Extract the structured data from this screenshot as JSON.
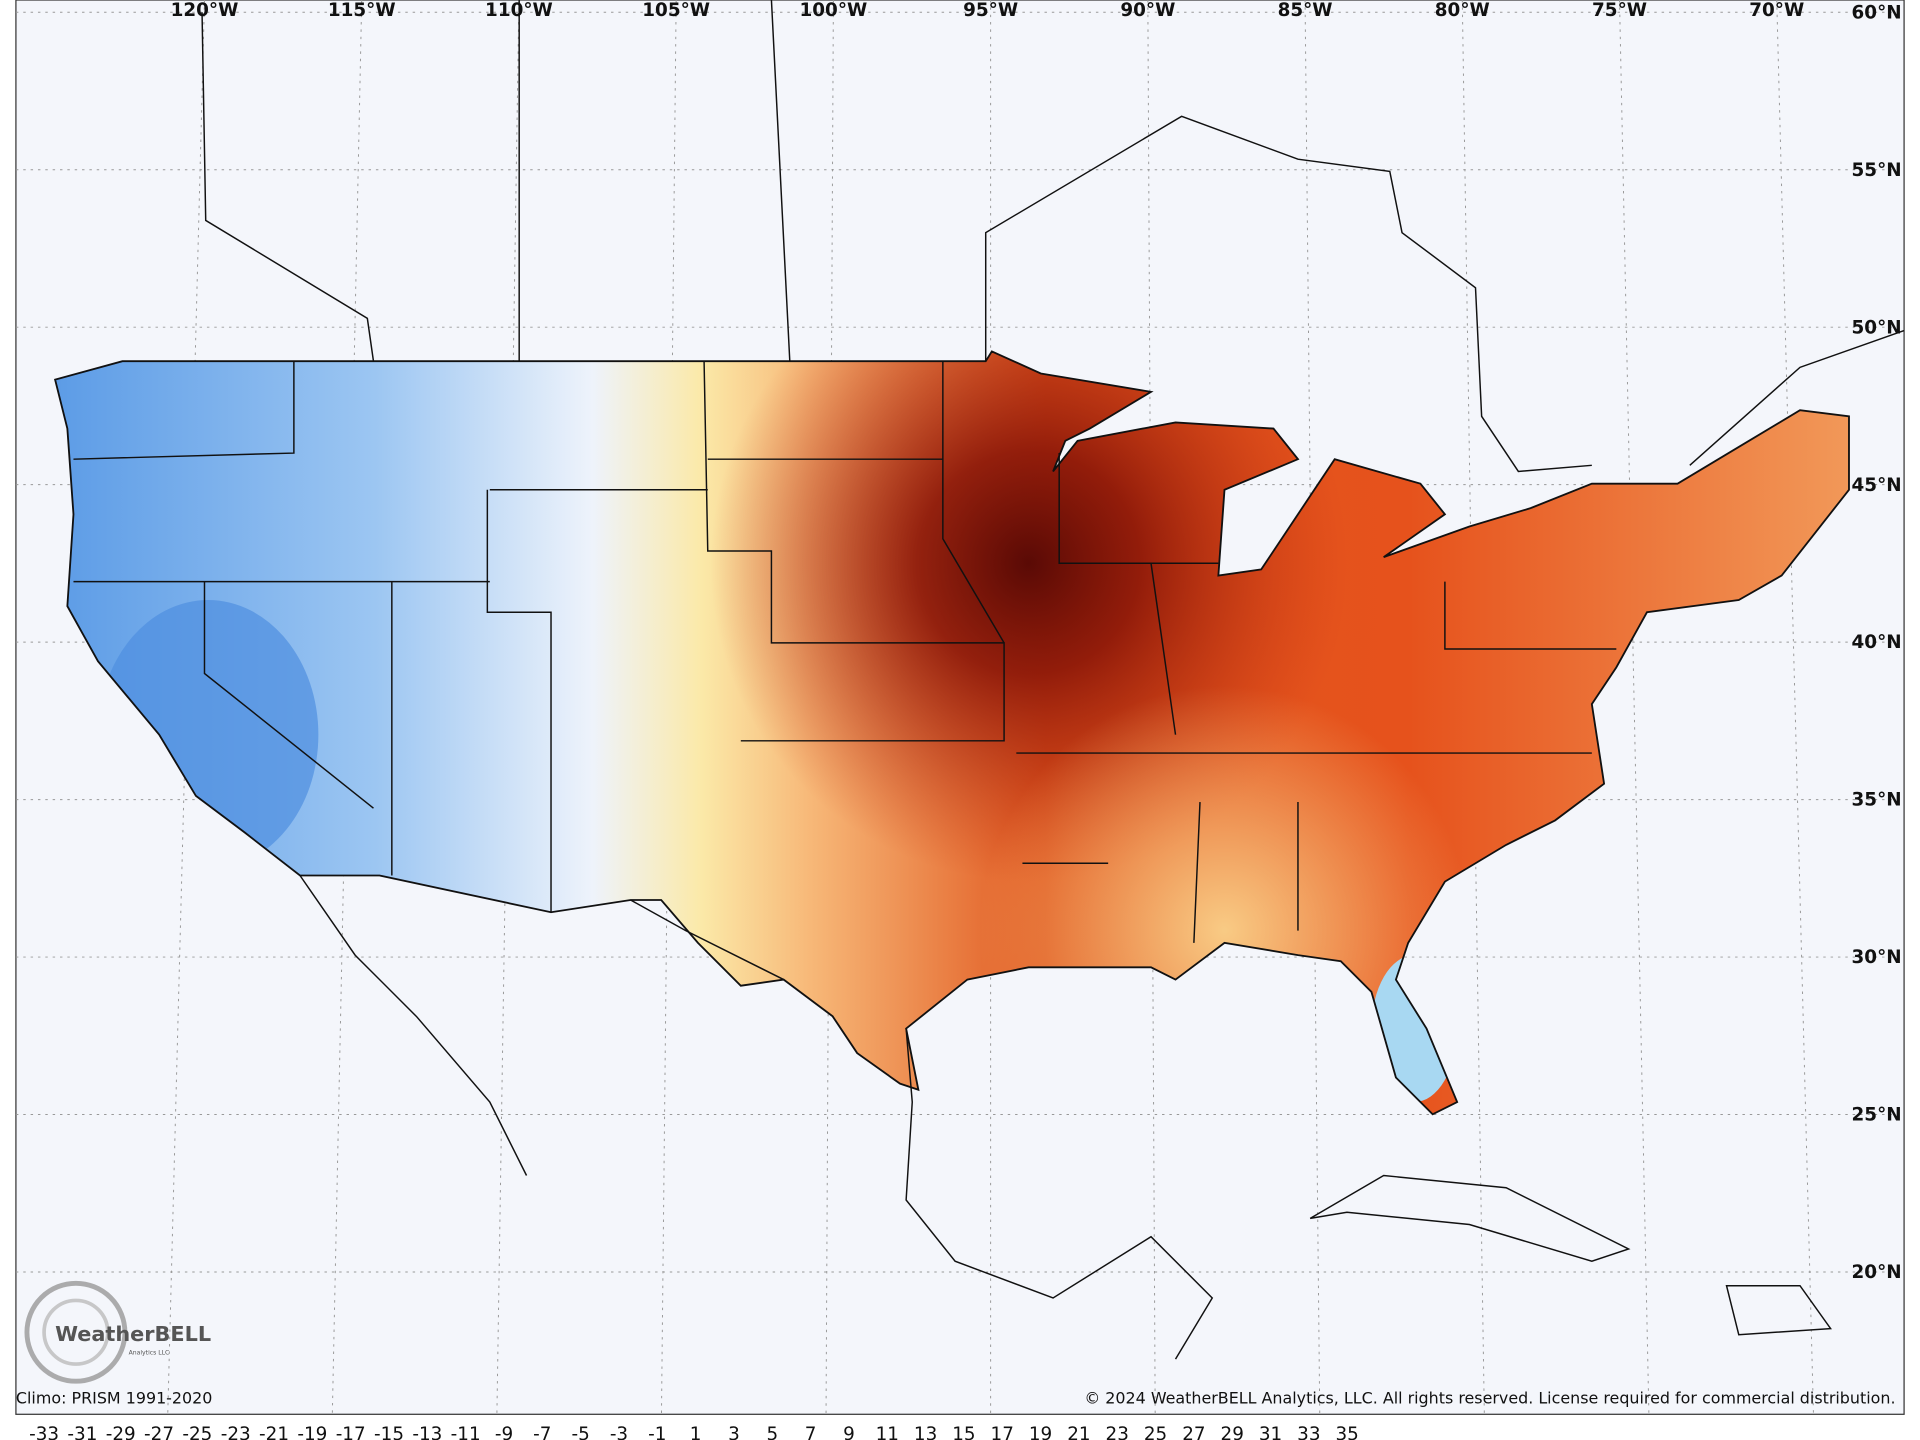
{
  "map": {
    "longitude_labels": [
      "120°W",
      "115°W",
      "110°W",
      "105°W",
      "100°W",
      "95°W",
      "90°W",
      "85°W",
      "80°W",
      "75°W",
      "70°W"
    ],
    "latitude_labels": [
      "60°N",
      "55°N",
      "50°N",
      "45°N",
      "40°N",
      "35°N",
      "30°N",
      "25°N",
      "20°N"
    ],
    "logo": {
      "name": "WeatherBELL",
      "tagline": "Analytics LLC"
    },
    "climo_note": "Climo: PRISM 1991-2020",
    "copyright": "© 2024 WeatherBELL Analytics, LLC. All rights reserved. License required for commercial distribution.",
    "colorbar_ticks": [
      -33,
      -31,
      -29,
      -27,
      -25,
      -23,
      -21,
      -19,
      -17,
      -15,
      -13,
      -11,
      -9,
      -7,
      -5,
      -3,
      -1,
      1,
      3,
      5,
      7,
      9,
      11,
      13,
      15,
      17,
      19,
      21,
      23,
      25,
      27,
      29,
      31,
      33,
      35
    ]
  }
}
